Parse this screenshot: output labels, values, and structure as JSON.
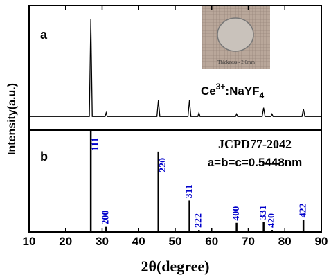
{
  "chart_data": [
    {
      "type": "line",
      "label": "a",
      "annotation": [
        "Ce",
        "3+",
        ":NaYF",
        "4"
      ],
      "inset_text": "Thickness - 2.0mm",
      "ylabel": "Intensity(a.u.)",
      "x": [
        10,
        26.5,
        26.9,
        27.3,
        30.8,
        31.1,
        31.4,
        45.0,
        45.4,
        45.8,
        53.5,
        53.9,
        54.3,
        56.2,
        56.5,
        56.8,
        66.5,
        66.8,
        67.1,
        73.8,
        74.2,
        74.6,
        76.2,
        76.5,
        76.8,
        84.7,
        85.1,
        85.5,
        90
      ],
      "values": [
        11,
        11,
        89,
        11,
        11,
        14,
        11,
        11,
        24,
        11,
        11,
        24,
        11,
        11,
        14,
        11,
        11,
        13,
        11,
        11,
        18,
        11,
        11,
        13,
        11,
        11,
        17,
        11,
        11
      ],
      "color": "#000000",
      "xlim": [
        10,
        90
      ],
      "ylim": [
        0,
        100
      ]
    },
    {
      "type": "stem",
      "label": "b",
      "annotation": [
        "JCPD77-2042",
        "a=b=c=0.5448nm"
      ],
      "x": [
        26.9,
        31.1,
        45.4,
        53.9,
        56.5,
        66.8,
        74.2,
        76.5,
        85.1
      ],
      "values": [
        100,
        5,
        79,
        31,
        2,
        9,
        10,
        2,
        12
      ],
      "labels": [
        "111",
        "200",
        "220",
        "311",
        "222",
        "400",
        "331",
        "420",
        "422"
      ],
      "color": "#000000",
      "label_color": "#0000cc",
      "xlim": [
        10,
        90
      ],
      "ylim": [
        0,
        100
      ],
      "xticks": [
        10,
        20,
        30,
        40,
        50,
        60,
        70,
        80,
        90
      ],
      "xlabel": "2θ(degree)"
    }
  ]
}
